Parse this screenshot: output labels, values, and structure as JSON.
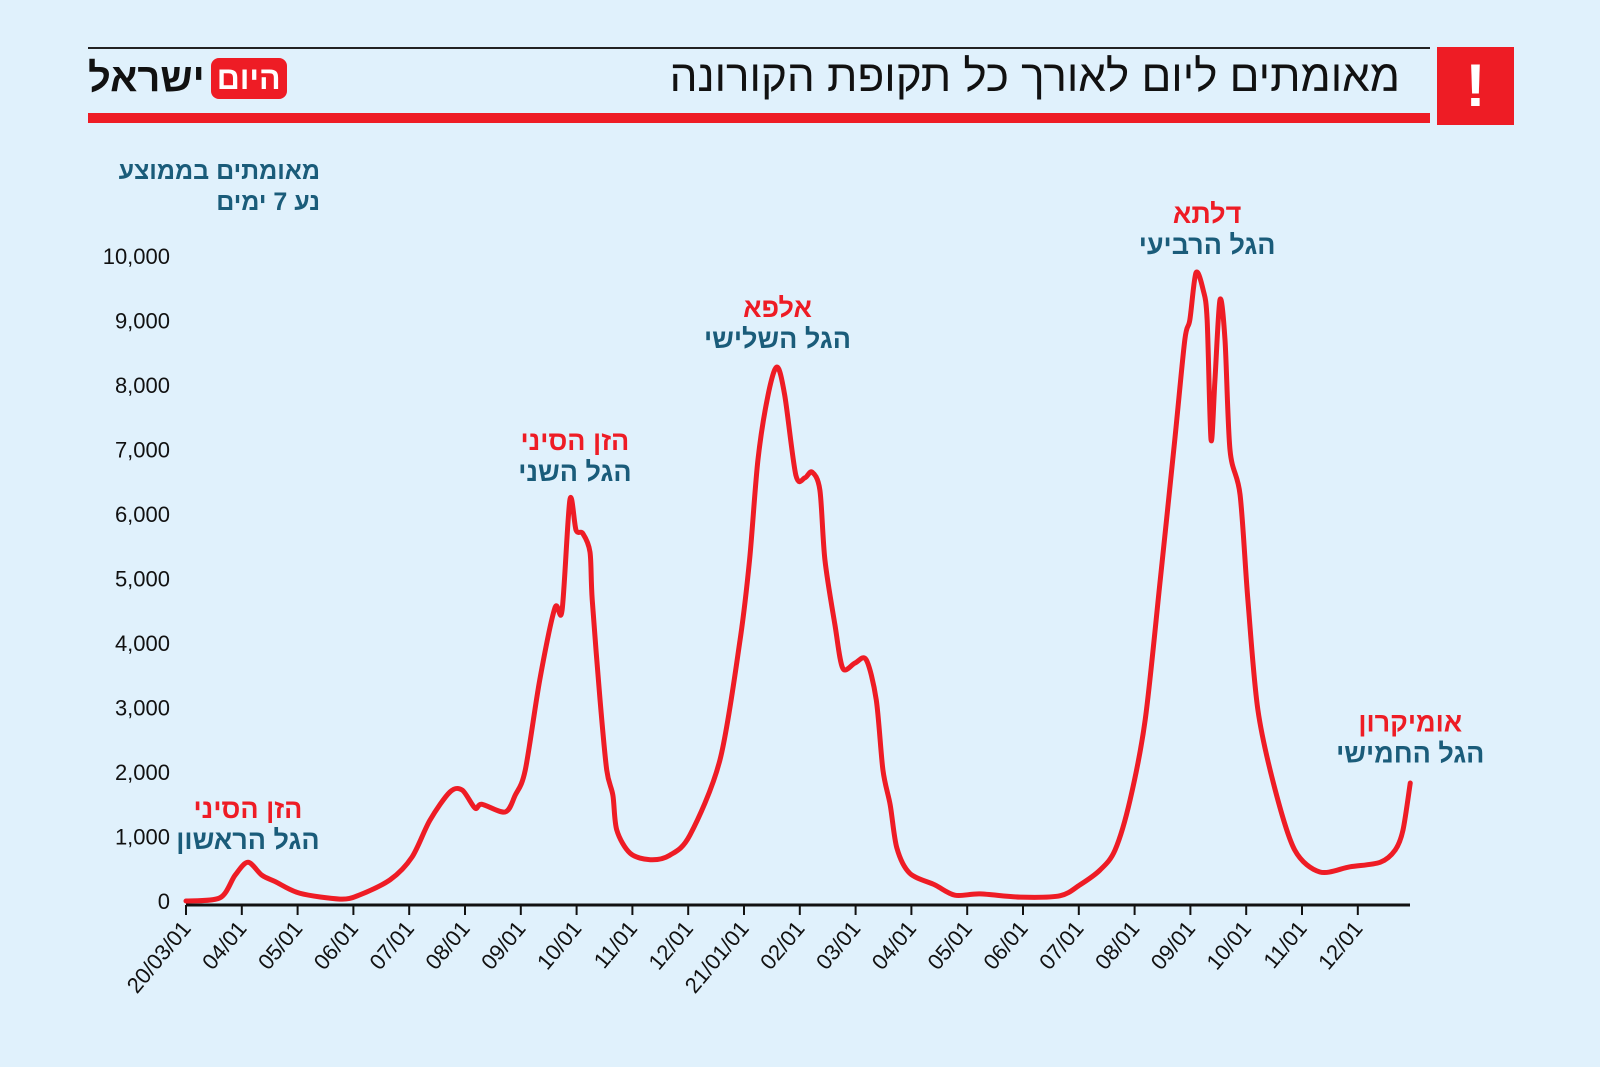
{
  "header": {
    "title": "מאומתים ליום לאורך כל תקופת הקורונה",
    "alert_mark": "!",
    "logo": {
      "word1": "ישראל",
      "word2": "היום"
    }
  },
  "colors": {
    "background": "#e0f1fc",
    "accent": "#ee1c25",
    "label_blue": "#1a5c7a",
    "line": "#ee1c25"
  },
  "chart_data": {
    "type": "line",
    "title": "מאומתים ליום לאורך כל תקופת הקורונה",
    "ylabel_lines": [
      "מאומתים בממוצע",
      "נע 7 ימים"
    ],
    "xlabel": "",
    "ylim": [
      0,
      10000
    ],
    "yticks": [
      0,
      1000,
      2000,
      3000,
      4000,
      5000,
      6000,
      7000,
      8000,
      9000,
      10000
    ],
    "ytick_labels": [
      "0",
      "1,000",
      "2,000",
      "3,000",
      "4,000",
      "5,000",
      "6,000",
      "7,000",
      "8,000",
      "9,000",
      "10,000"
    ],
    "xtick_labels": [
      "20/03/01",
      "04/01",
      "05/01",
      "06/01",
      "07/01",
      "08/01",
      "09/01",
      "10/01",
      "11/01",
      "12/01",
      "21/01/01",
      "02/01",
      "03/01",
      "04/01",
      "05/01",
      "06/01",
      "07/01",
      "08/01",
      "09/01",
      "10/01",
      "11/01",
      "12/01"
    ],
    "x_unit": "months since 2020-03-01",
    "series": [
      {
        "name": "מאומתים בממוצע נע 7 ימים",
        "points": [
          [
            0,
            0
          ],
          [
            0.61,
            50
          ],
          [
            0.88,
            400
          ],
          [
            1.11,
            600
          ],
          [
            1.36,
            400
          ],
          [
            1.6,
            300
          ],
          [
            2.04,
            120
          ],
          [
            2.76,
            30
          ],
          [
            3.1,
            90
          ],
          [
            3.66,
            330
          ],
          [
            4.05,
            680
          ],
          [
            4.37,
            1250
          ],
          [
            4.73,
            1690
          ],
          [
            4.95,
            1720
          ],
          [
            5.18,
            1440
          ],
          [
            5.3,
            1500
          ],
          [
            5.72,
            1380
          ],
          [
            5.9,
            1640
          ],
          [
            6.08,
            2030
          ],
          [
            6.34,
            3430
          ],
          [
            6.61,
            4540
          ],
          [
            6.74,
            4510
          ],
          [
            6.88,
            6220
          ],
          [
            6.99,
            5750
          ],
          [
            7.11,
            5700
          ],
          [
            7.24,
            5410
          ],
          [
            7.28,
            4670
          ],
          [
            7.42,
            3120
          ],
          [
            7.54,
            2030
          ],
          [
            7.65,
            1640
          ],
          [
            7.72,
            1100
          ],
          [
            7.96,
            740
          ],
          [
            8.32,
            640
          ],
          [
            8.67,
            710
          ],
          [
            9.03,
            1020
          ],
          [
            9.57,
            2190
          ],
          [
            9.93,
            4050
          ],
          [
            10.1,
            5290
          ],
          [
            10.25,
            6840
          ],
          [
            10.43,
            7840
          ],
          [
            10.59,
            8280
          ],
          [
            10.73,
            7840
          ],
          [
            10.93,
            6600
          ],
          [
            11.09,
            6560
          ],
          [
            11.22,
            6650
          ],
          [
            11.36,
            6370
          ],
          [
            11.45,
            5290
          ],
          [
            11.63,
            4280
          ],
          [
            11.77,
            3610
          ],
          [
            11.99,
            3690
          ],
          [
            12.19,
            3740
          ],
          [
            12.37,
            3120
          ],
          [
            12.49,
            2030
          ],
          [
            12.62,
            1490
          ],
          [
            12.74,
            820
          ],
          [
            12.97,
            430
          ],
          [
            13.42,
            250
          ],
          [
            13.78,
            90
          ],
          [
            14.23,
            110
          ],
          [
            14.95,
            60
          ],
          [
            15.66,
            80
          ],
          [
            16.02,
            250
          ],
          [
            16.38,
            480
          ],
          [
            16.65,
            790
          ],
          [
            16.92,
            1570
          ],
          [
            17.19,
            2810
          ],
          [
            17.46,
            4980
          ],
          [
            17.72,
            7150
          ],
          [
            17.9,
            8700
          ],
          [
            17.99,
            9010
          ],
          [
            18.1,
            9740
          ],
          [
            18.23,
            9470
          ],
          [
            18.3,
            9010
          ],
          [
            18.37,
            7150
          ],
          [
            18.44,
            8080
          ],
          [
            18.53,
            9320
          ],
          [
            18.62,
            8700
          ],
          [
            18.71,
            6990
          ],
          [
            18.89,
            6300
          ],
          [
            19.03,
            4670
          ],
          [
            19.21,
            2960
          ],
          [
            19.52,
            1720
          ],
          [
            19.87,
            790
          ],
          [
            20.32,
            450
          ],
          [
            20.86,
            530
          ],
          [
            21.4,
            600
          ],
          [
            21.67,
            790
          ],
          [
            21.81,
            1100
          ],
          [
            21.94,
            1830
          ]
        ]
      }
    ],
    "annotations": [
      {
        "variant": "הזן הסיני",
        "wave": "הגל הראשון",
        "x": 1.11,
        "y": 1440
      },
      {
        "variant": "הזן הסיני",
        "wave": "הגל השני",
        "x": 6.97,
        "y": 7150
      },
      {
        "variant": "אלפא",
        "wave": "הגל השלישי",
        "x": 10.6,
        "y": 9210
      },
      {
        "variant": "דלתא",
        "wave": "הגל הרביעי",
        "x": 18.3,
        "y": 10670
      },
      {
        "variant": "אומיקרון",
        "wave": "הגל החמישי",
        "x": 21.94,
        "y": 2780
      }
    ]
  }
}
